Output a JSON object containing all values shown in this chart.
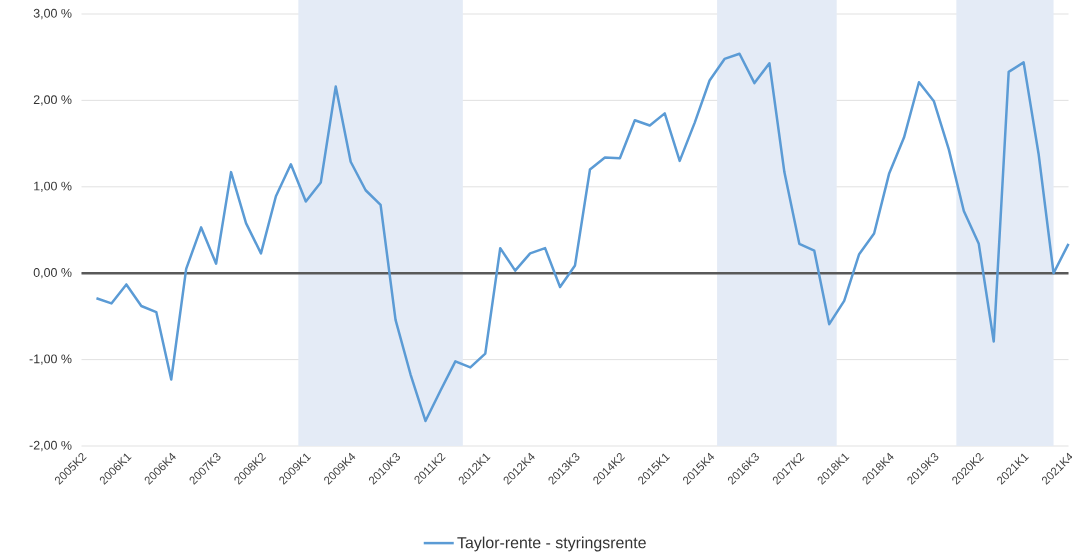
{
  "chart_data": {
    "type": "line",
    "categories": [
      "2005K2",
      null,
      null,
      "2006K1",
      null,
      null,
      "2006K4",
      null,
      null,
      "2007K3",
      null,
      null,
      "2008K2",
      null,
      null,
      "2009K1",
      null,
      null,
      "2009K4",
      null,
      null,
      "2010K3",
      null,
      null,
      "2011K2",
      null,
      null,
      "2012K1",
      null,
      null,
      "2012K4",
      null,
      null,
      "2013K3",
      null,
      null,
      "2014K2",
      null,
      null,
      "2015K1",
      null,
      null,
      "2015K4",
      null,
      null,
      "2016K3",
      null,
      null,
      "2017K2",
      null,
      null,
      "2018K1",
      null,
      null,
      "2018K4",
      null,
      null,
      "2019K3",
      null,
      null,
      "2020K2",
      null,
      null,
      "2021K1",
      null,
      null,
      "2021K4"
    ],
    "series": [
      {
        "name": "Taylor-rente  - styringsrente",
        "color": "#5b9bd5",
        "values": [
          null,
          -0.29,
          -0.35,
          -0.13,
          -0.38,
          -0.45,
          -1.23,
          0.05,
          0.53,
          0.11,
          1.17,
          0.58,
          0.23,
          0.89,
          1.26,
          0.83,
          1.05,
          2.16,
          1.29,
          0.96,
          0.79,
          -0.54,
          -1.17,
          -1.71,
          -1.36,
          -1.02,
          -1.09,
          -0.93,
          0.29,
          0.03,
          0.23,
          0.29,
          -0.16,
          0.09,
          1.2,
          1.34,
          1.33,
          1.77,
          1.71,
          1.85,
          1.3,
          1.74,
          2.23,
          2.48,
          2.54,
          2.2,
          2.43,
          1.17,
          0.34,
          0.26,
          -0.59,
          -0.32,
          0.22,
          0.46,
          1.15,
          1.57,
          2.21,
          1.99,
          1.43,
          0.72,
          0.34,
          -0.79,
          2.33,
          2.44,
          1.38,
          0.0,
          0.34
        ]
      }
    ],
    "ylim": [
      -2,
      3
    ],
    "yticks": [
      {
        "value": -2,
        "label": "-2,00 %"
      },
      {
        "value": -1,
        "label": "-1,00 %"
      },
      {
        "value": 0,
        "label": "0,00 %"
      },
      {
        "value": 1,
        "label": "1,00 %"
      },
      {
        "value": 2,
        "label": "2,00 %"
      },
      {
        "value": 3,
        "label": "3,00 %"
      }
    ],
    "ref_lines": [
      {
        "axis": "y",
        "value": 0,
        "color": "#595959"
      }
    ],
    "grid": "y",
    "legend": "bottom"
  }
}
